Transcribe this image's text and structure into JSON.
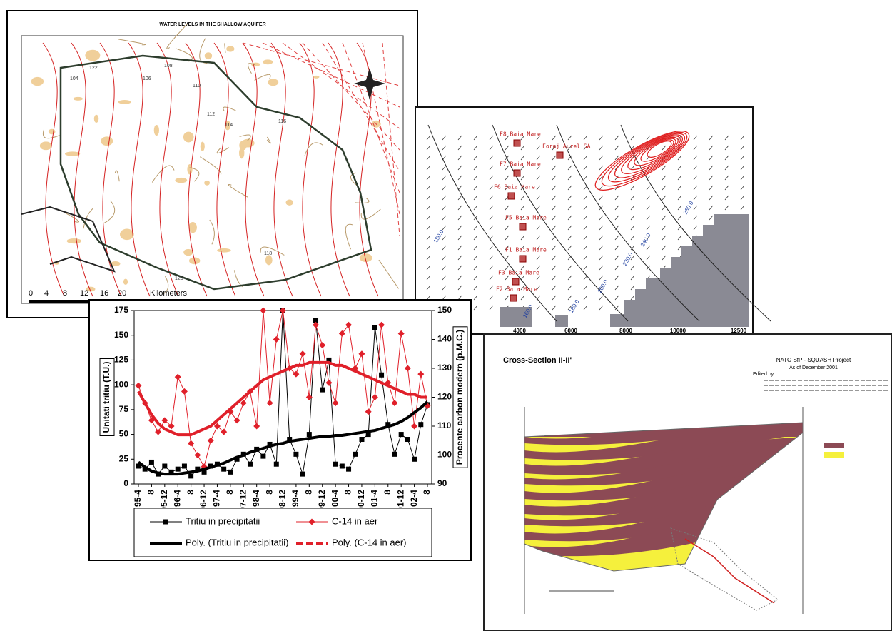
{
  "map": {
    "title": "WATER LEVELS IN THE SHALLOW AQUIFER",
    "contour_labels": [
      "104",
      "106",
      "108",
      "110",
      "112",
      "114",
      "116",
      "118",
      "120",
      "122"
    ],
    "scale_labels": [
      "0",
      "4",
      "8",
      "12",
      "16",
      "20",
      "Kilometers"
    ]
  },
  "model": {
    "well_labels": [
      "F8 Baia Mare",
      "Foraj Aurel SA",
      "F7 Baia Mare",
      "F6 Baia Mare",
      "F5 Baia Mare",
      "F1 Baia Mare",
      "F3 Baia Mare",
      "F2 Baia Mare"
    ],
    "contour_labels": [
      "160.0",
      "180.0",
      "200.0",
      "220.0",
      "240.0",
      "260.0",
      "180.0"
    ],
    "x_axis_labels": [
      "4000",
      "6000",
      "8000",
      "10000",
      "12500"
    ]
  },
  "cross_section": {
    "title": "Cross-Section II-II'",
    "project": "NATO SfP - SQUASH Project",
    "date": "As of December 2001",
    "edited_by": "Edited by"
  },
  "chart_data": {
    "type": "line",
    "y_label": "Unitati tritiu (T.U.)",
    "y2_label": "Procente carbon modern (p.M.C.)",
    "categories": [
      "95-4",
      null,
      "8",
      null,
      "95-12",
      null,
      "96-4",
      null,
      "8",
      null,
      "96-12",
      null,
      "97-4",
      null,
      "8",
      null,
      "97-12",
      null,
      "98-4",
      null,
      "8",
      null,
      "98-12",
      null,
      "99-4",
      null,
      "8",
      null,
      "99-12",
      null,
      "00-4",
      null,
      "8",
      null,
      "00-12",
      null,
      "01-4",
      null,
      "8",
      null,
      "01-12",
      null,
      "02-4",
      null,
      "8"
    ],
    "ylim": [
      0,
      175
    ],
    "yticks": [
      0,
      25,
      50,
      75,
      100,
      125,
      150,
      175
    ],
    "y2lim": [
      90,
      150
    ],
    "y2ticks": [
      90,
      100,
      110,
      120,
      130,
      140,
      150
    ],
    "series": [
      {
        "name": "Tritiu in precipitatii",
        "color": "#000000",
        "marker": "square",
        "width": 1,
        "values": [
          18,
          15,
          22,
          10,
          18,
          12,
          15,
          18,
          8,
          15,
          12,
          18,
          20,
          15,
          12,
          25,
          30,
          20,
          35,
          28,
          40,
          20,
          175,
          45,
          30,
          10,
          50,
          165,
          95,
          125,
          20,
          18,
          15,
          30,
          45,
          50,
          158,
          110,
          60,
          30,
          50,
          45,
          25,
          60,
          80
        ]
      },
      {
        "name": "C-14 in aer",
        "color": "#e0202a",
        "marker": "diamond",
        "width": 1,
        "axis": "y2",
        "values": [
          124,
          118,
          112,
          108,
          112,
          110,
          127,
          122,
          104,
          100,
          96,
          105,
          110,
          108,
          115,
          112,
          118,
          122,
          110,
          150,
          118,
          140,
          150,
          130,
          128,
          135,
          120,
          145,
          138,
          125,
          118,
          142,
          145,
          130,
          135,
          115,
          120,
          145,
          125,
          118,
          142,
          130,
          110,
          128,
          117
        ]
      },
      {
        "name": "Poly. (Tritiu in precipitatii)",
        "color": "#000000",
        "marker": "none",
        "width": 4,
        "values": [
          22,
          17,
          13,
          11,
          10,
          10,
          10,
          11,
          12,
          13,
          15,
          17,
          19,
          21,
          24,
          27,
          29,
          32,
          34,
          36,
          38,
          40,
          41,
          43,
          44,
          45,
          46,
          47,
          48,
          48,
          49,
          49,
          50,
          51,
          52,
          53,
          54,
          56,
          58,
          60,
          63,
          67,
          72,
          77,
          83
        ]
      },
      {
        "name": "Poly. (C-14 in aer)",
        "color": "#e0202a",
        "marker": "none",
        "width": 4,
        "axis": "y2",
        "values": [
          122,
          118,
          114,
          111,
          109,
          108,
          107,
          107,
          107,
          108,
          109,
          110,
          112,
          114,
          116,
          118,
          120,
          122,
          124,
          126,
          127,
          128,
          129,
          130,
          131,
          131,
          132,
          132,
          132,
          132,
          131,
          131,
          130,
          129,
          128,
          127,
          126,
          125,
          124,
          123,
          122,
          121,
          121,
          120,
          120
        ]
      }
    ]
  }
}
